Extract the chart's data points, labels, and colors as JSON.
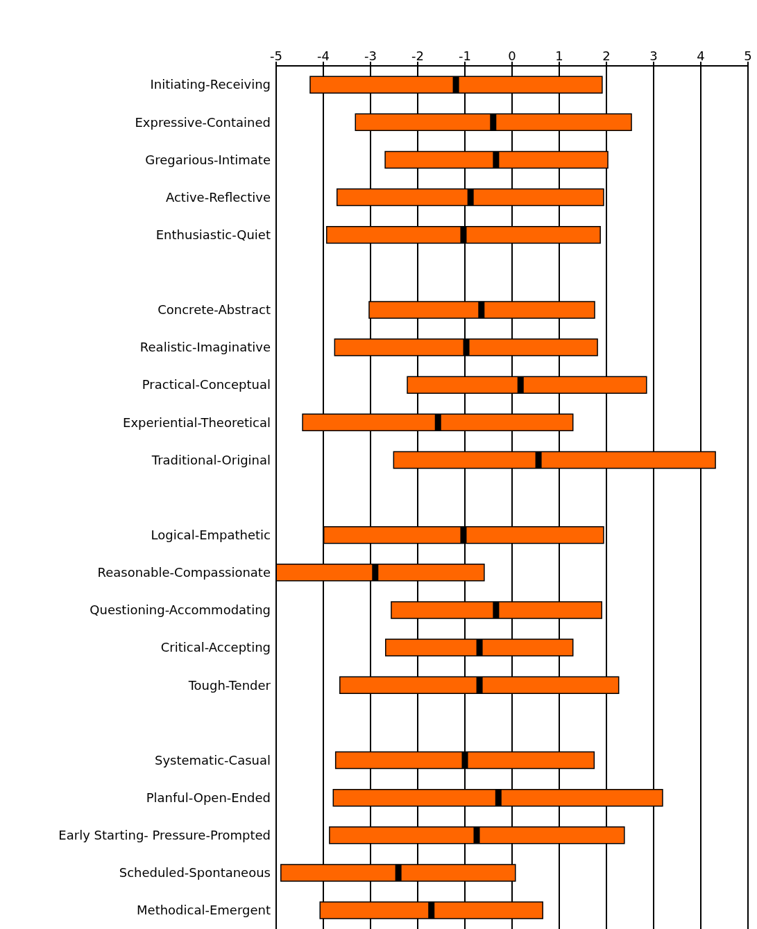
{
  "chart_data": {
    "type": "bar",
    "orientation": "horizontal",
    "categories": [
      "Initiating-Receiving",
      "Expressive-Contained",
      "Gregarious-Intimate",
      "Active-Reflective",
      "Enthusiastic-Quiet",
      null,
      "Concrete-Abstract",
      "Realistic-Imaginative",
      "Practical-Conceptual",
      "Experiential-Theoretical",
      "Traditional-Original",
      null,
      "Logical-Empathetic",
      "Reasonable-Compassionate",
      "Questioning-Accommodating",
      "Critical-Accepting",
      "Tough-Tender",
      null,
      "Systematic-Casual",
      "Planful-Open-Ended",
      "Early Starting- Pressure-Prompted",
      "Scheduled-Spontaneous",
      "Methodical-Emergent"
    ],
    "series": [
      {
        "type": "bar",
        "color": "#ff6600",
        "base": [
          -4.28,
          -3.32,
          -2.69,
          -3.71,
          -3.93,
          null,
          -3.03,
          -3.76,
          -2.22,
          -4.44,
          -2.51,
          null,
          -3.99,
          -5.0,
          -2.56,
          -2.68,
          -3.65,
          null,
          -3.74,
          -3.79,
          -3.87,
          -4.9,
          -4.07
        ],
        "values": [
          6.19,
          5.85,
          4.72,
          5.65,
          5.8,
          null,
          4.78,
          5.57,
          5.07,
          5.73,
          6.82,
          null,
          5.93,
          4.41,
          4.46,
          3.97,
          5.91,
          null,
          5.48,
          6.98,
          6.25,
          4.97,
          4.72
        ]
      },
      {
        "type": "scatter",
        "color": "#000000",
        "marker": "square",
        "values": [
          -1.19,
          -0.4,
          -0.34,
          -0.88,
          -1.03,
          null,
          -0.65,
          -0.97,
          0.18,
          -1.57,
          0.56,
          null,
          -1.03,
          -2.9,
          -0.34,
          -0.69,
          -0.69,
          null,
          -1.0,
          -0.29,
          -0.75,
          -2.41,
          -1.71
        ]
      }
    ],
    "xlim": [
      -5,
      5
    ],
    "xticks": [
      -5,
      -4,
      -3,
      -2,
      -1,
      0,
      1,
      2,
      3,
      4,
      5
    ],
    "grid": "x"
  }
}
